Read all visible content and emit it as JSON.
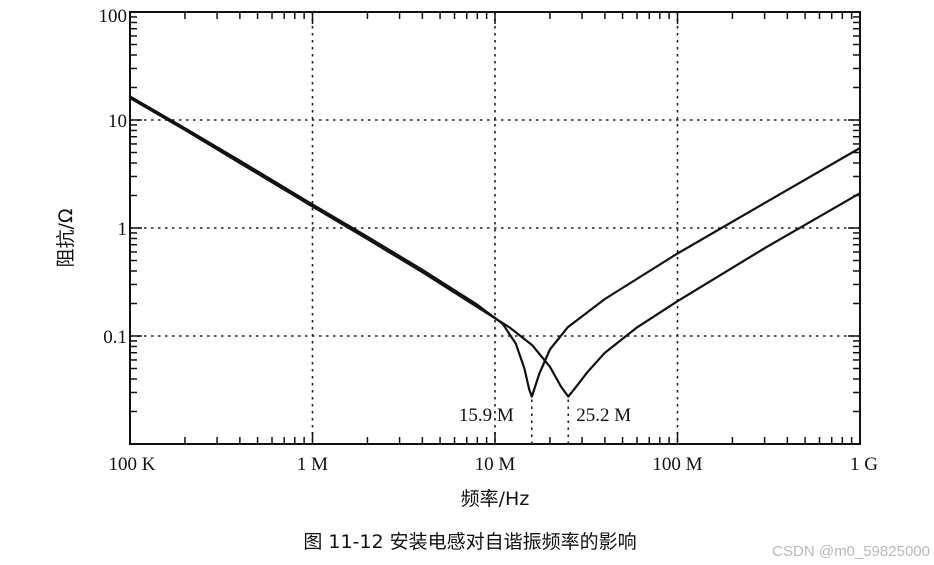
{
  "chart_data": {
    "type": "line",
    "title": "",
    "xlabel": "频率/Hz",
    "ylabel": "阻抗/Ω",
    "x_scale": "log",
    "y_scale": "log",
    "xlim": [
      100000,
      1000000000
    ],
    "ylim": [
      0.01,
      100
    ],
    "grid": true,
    "x_ticks": [
      {
        "value": 100000,
        "label": "100 K"
      },
      {
        "value": 1000000,
        "label": "1 M"
      },
      {
        "value": 10000000,
        "label": "10 M"
      },
      {
        "value": 100000000,
        "label": "100 M"
      },
      {
        "value": 1000000000,
        "label": "1 G"
      }
    ],
    "y_ticks": [
      {
        "value": 100,
        "label": "100"
      },
      {
        "value": 10,
        "label": "10"
      },
      {
        "value": 1,
        "label": "1"
      },
      {
        "value": 0.1,
        "label": "0.1"
      }
    ],
    "series": [
      {
        "color": "#111111",
        "width": 2.2,
        "points": [
          [
            100000,
            16.5
          ],
          [
            200000,
            8.4
          ],
          [
            400000,
            4.2
          ],
          [
            1000000,
            1.65
          ],
          [
            2000000,
            0.83
          ],
          [
            4000000,
            0.41
          ],
          [
            8000000,
            0.195
          ],
          [
            11000000,
            0.13
          ],
          [
            13000000,
            0.085
          ],
          [
            14500000,
            0.05
          ],
          [
            15400000,
            0.032
          ],
          [
            15900000,
            0.0275
          ],
          [
            16400000,
            0.032
          ],
          [
            17500000,
            0.045
          ],
          [
            20000000,
            0.075
          ],
          [
            25000000,
            0.12
          ],
          [
            40000000,
            0.22
          ],
          [
            100000000,
            0.58
          ],
          [
            300000000,
            1.7
          ],
          [
            1000000000,
            5.5
          ]
        ]
      },
      {
        "color": "#111111",
        "width": 2.2,
        "points": [
          [
            100000,
            16.0
          ],
          [
            200000,
            8.1
          ],
          [
            400000,
            4.0
          ],
          [
            1000000,
            1.58
          ],
          [
            2000000,
            0.79
          ],
          [
            4000000,
            0.39
          ],
          [
            8000000,
            0.185
          ],
          [
            12000000,
            0.12
          ],
          [
            16000000,
            0.082
          ],
          [
            20000000,
            0.052
          ],
          [
            23000000,
            0.034
          ],
          [
            25200000,
            0.0275
          ],
          [
            27500000,
            0.033
          ],
          [
            32000000,
            0.046
          ],
          [
            40000000,
            0.07
          ],
          [
            60000000,
            0.12
          ],
          [
            100000000,
            0.21
          ],
          [
            300000000,
            0.65
          ],
          [
            1000000000,
            2.1
          ]
        ]
      }
    ],
    "annotations": [
      {
        "label": "15.9 M",
        "x": 15900000
      },
      {
        "label": "25.2 M",
        "x": 25200000
      }
    ]
  },
  "caption": "图 11-12   安装电感对自谐振频率的影响",
  "watermark": "CSDN @m0_59825000"
}
